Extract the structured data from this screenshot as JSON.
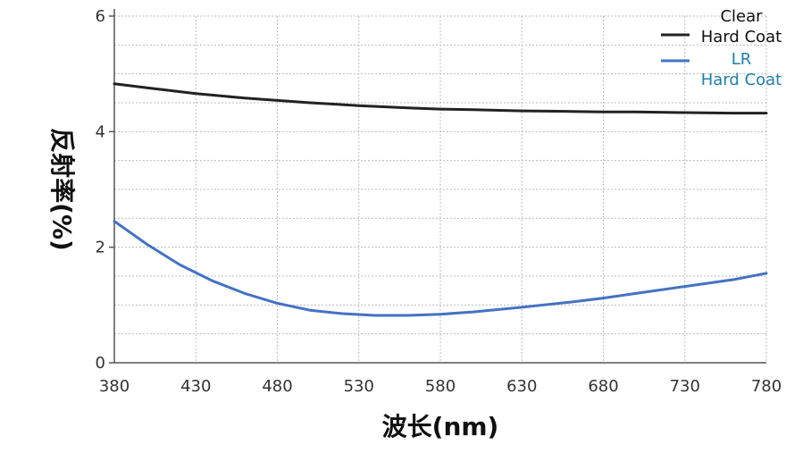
{
  "chart_data": {
    "type": "line",
    "title": "",
    "xlabel": "波长(nm)",
    "ylabel": "反射率(%)",
    "xlim": [
      380,
      780
    ],
    "ylim": [
      0,
      6
    ],
    "xticks": [
      380,
      430,
      480,
      530,
      580,
      630,
      680,
      730,
      780
    ],
    "yticks": [
      0,
      2,
      4,
      6
    ],
    "grid": true,
    "legend_position": "top-right",
    "series": [
      {
        "name": "Clear Hard Coat",
        "name_lines": [
          "Clear",
          "Hard Coat"
        ],
        "color": "#222222",
        "x": [
          380,
          400,
          430,
          460,
          480,
          500,
          530,
          560,
          580,
          600,
          630,
          660,
          680,
          700,
          730,
          760,
          780
        ],
        "y": [
          4.83,
          4.76,
          4.66,
          4.58,
          4.54,
          4.5,
          4.45,
          4.41,
          4.39,
          4.38,
          4.36,
          4.35,
          4.34,
          4.34,
          4.33,
          4.32,
          4.32
        ]
      },
      {
        "name": "LR Hard Coat",
        "name_lines": [
          "LR",
          "Hard Coat"
        ],
        "color": "#4472c4",
        "legend_text_color": "#1f7ea8",
        "x": [
          380,
          400,
          420,
          440,
          460,
          480,
          500,
          520,
          540,
          560,
          580,
          600,
          630,
          660,
          680,
          700,
          730,
          760,
          780
        ],
        "y": [
          2.45,
          2.05,
          1.7,
          1.42,
          1.2,
          1.03,
          0.91,
          0.85,
          0.82,
          0.82,
          0.84,
          0.88,
          0.96,
          1.05,
          1.12,
          1.2,
          1.32,
          1.44,
          1.55
        ]
      }
    ]
  }
}
